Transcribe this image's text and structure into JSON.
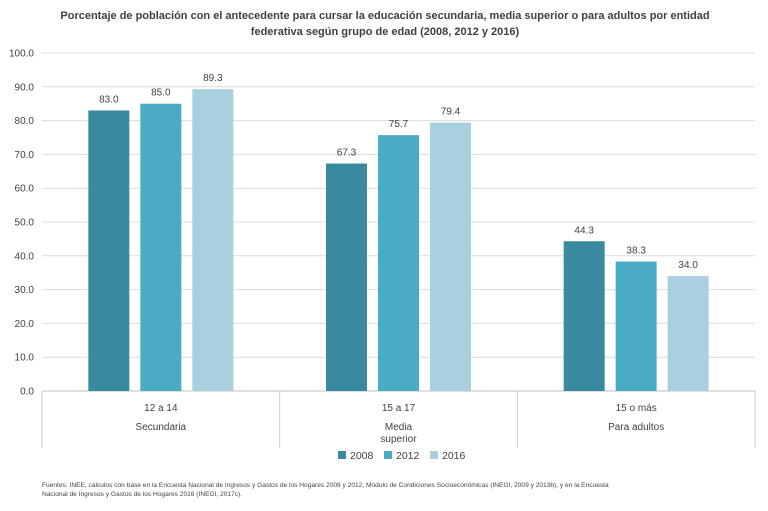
{
  "chart_data": {
    "type": "bar",
    "title": "Porcentaje de población con el antecedente para cursar la educación secundaria, media superior o para adultos por entidad federativa según grupo de edad (2008, 2012 y 2016)",
    "groups": [
      {
        "age_label": "12 a 14",
        "level_label": "Secundaria"
      },
      {
        "age_label": "15 a 17",
        "level_label": "Media superior"
      },
      {
        "age_label": "15 o más",
        "level_label": "Para adultos"
      }
    ],
    "series": [
      {
        "name": "2008",
        "color": "#3a8a9f",
        "values": [
          83.0,
          67.3,
          44.3
        ]
      },
      {
        "name": "2012",
        "color": "#4aabc7",
        "values": [
          85.0,
          75.7,
          38.3
        ]
      },
      {
        "name": "2016",
        "color": "#a8d0de",
        "values": [
          89.3,
          79.4,
          34.0
        ]
      }
    ],
    "ylim": [
      0,
      100
    ],
    "yticks": [
      "0.0",
      "10.0",
      "20.0",
      "30.0",
      "40.0",
      "50.0",
      "60.0",
      "70.0",
      "80.0",
      "90.0",
      "100.0"
    ],
    "grid": true,
    "legend_position": "bottom"
  },
  "footer": {
    "line1": "Fuentes: INEE, cálculos con base en la Encuesta Nacional de Ingresos y Gastos de los Hogares 2008 y 2012, Módulo de Condiciones Socioeconómicas (INEGI, 2009 y 2013b), y en la Encuesta",
    "line2": "Nacional de Ingresos y Gastos de los Hogares 2016 (INEGI, 2017c)."
  }
}
